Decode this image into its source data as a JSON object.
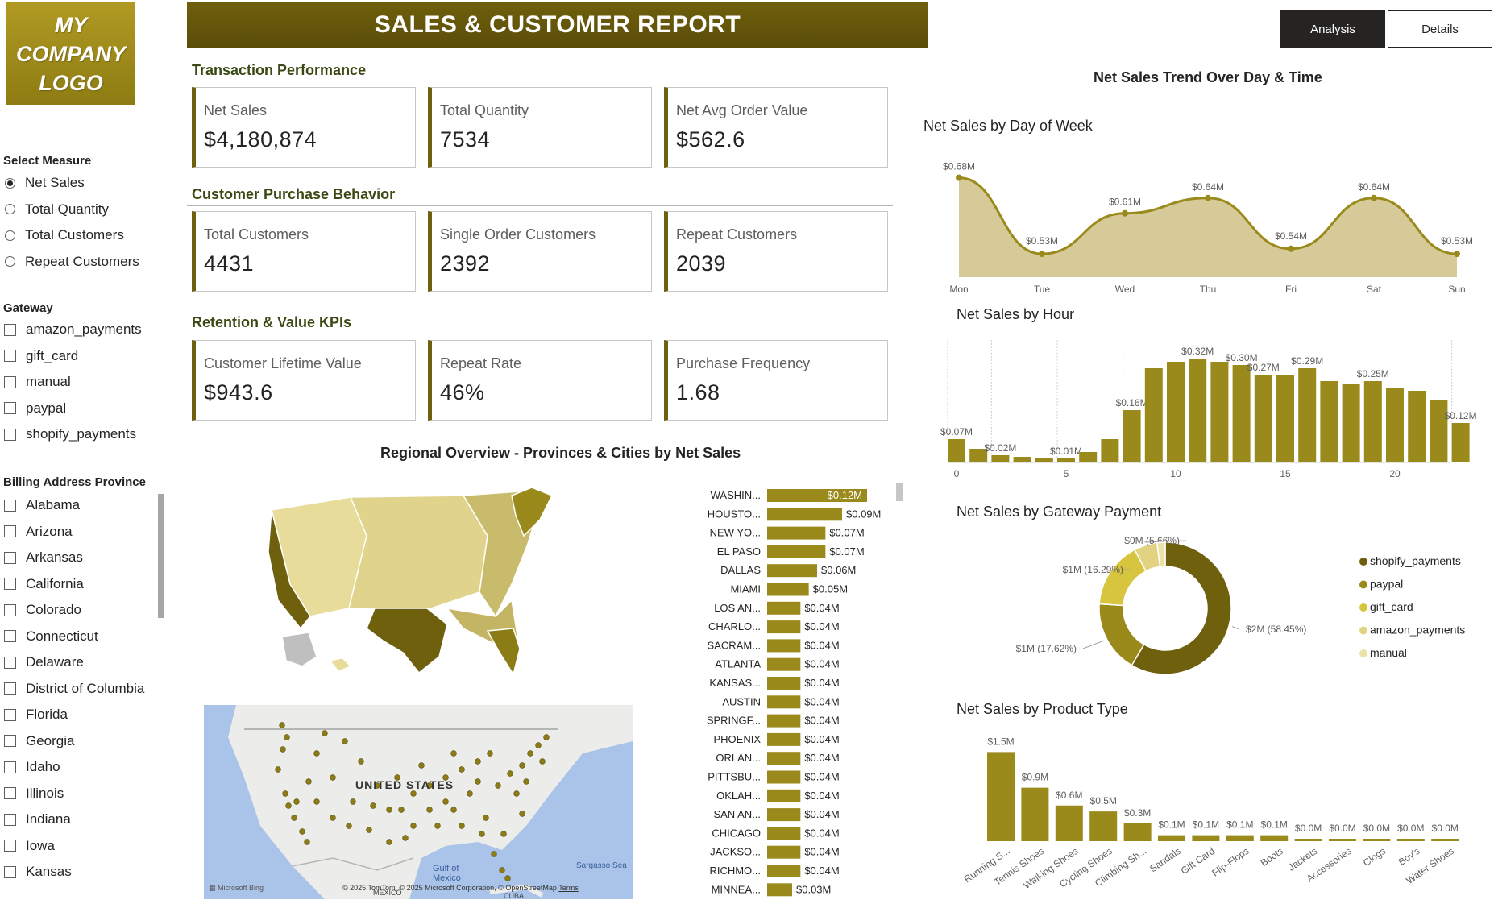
{
  "logo": {
    "line1": "MY",
    "line2": "COMPANY",
    "line3": "LOGO"
  },
  "header": {
    "title": "SALES & CUSTOMER REPORT"
  },
  "tabs": {
    "analysis": "Analysis",
    "details": "Details"
  },
  "sidebar": {
    "measure_title": "Select Measure",
    "measures": [
      "Net Sales",
      "Total Quantity",
      "Total Customers",
      "Repeat Customers"
    ],
    "gateway_title": "Gateway",
    "gateways": [
      "amazon_payments",
      "gift_card",
      "manual",
      "paypal",
      "shopify_payments"
    ],
    "province_title": "Billing Address Province",
    "provinces": [
      "Alabama",
      "Arizona",
      "Arkansas",
      "California",
      "Colorado",
      "Connecticut",
      "Delaware",
      "District of Columbia",
      "Florida",
      "Georgia",
      "Idaho",
      "Illinois",
      "Indiana",
      "Iowa",
      "Kansas"
    ]
  },
  "sections": {
    "transaction": "Transaction Performance",
    "customer": "Customer Purchase Behavior",
    "retention": "Retention & Value KPIs"
  },
  "kpis": {
    "net_sales": {
      "label": "Net Sales",
      "value": "$4,180,874"
    },
    "total_quantity": {
      "label": "Total Quantity",
      "value": "7534"
    },
    "net_aov": {
      "label": "Net Avg Order Value",
      "value": "$562.6"
    },
    "total_customers": {
      "label": "Total Customers",
      "value": "4431"
    },
    "single_customers": {
      "label": "Single Order Customers",
      "value": "2392"
    },
    "repeat_customers": {
      "label": "Repeat Customers",
      "value": "2039"
    },
    "clv": {
      "label": "Customer Lifetime Value",
      "value": "$943.6"
    },
    "repeat_rate": {
      "label": "Repeat Rate",
      "value": "46%"
    },
    "purchase_freq": {
      "label": "Purchase Frequency",
      "value": "1.68"
    }
  },
  "regional": {
    "title": "Regional Overview - Provinces & Cities by Net Sales",
    "map_labels": {
      "country": "UNITED STATES",
      "gulf": "Gulf of Mexico",
      "sargasso": "Sargasso Sea",
      "mexico": "MEXICO",
      "cuba": "CUBA",
      "bing": "Microsoft Bing",
      "copyright": "© 2025 TomTom, © 2025 Microsoft Corporation, © OpenStreetMap",
      "terms": "Terms"
    }
  },
  "trend_title": "Net Sales Trend Over Day & Time",
  "chart_data": [
    {
      "type": "area",
      "title": "Net Sales by Day of Week",
      "categories": [
        "Mon",
        "Tue",
        "Wed",
        "Thu",
        "Fri",
        "Sat",
        "Sun"
      ],
      "values": [
        0.68,
        0.53,
        0.61,
        0.64,
        0.54,
        0.64,
        0.53
      ],
      "labels": [
        "$0.68M",
        "$0.53M",
        "$0.61M",
        "$0.64M",
        "$0.54M",
        "$0.64M",
        "$0.53M"
      ],
      "ylim": [
        0.5,
        0.7
      ]
    },
    {
      "type": "bar",
      "title": "Net Sales by Hour",
      "x": [
        0,
        1,
        2,
        3,
        4,
        5,
        6,
        7,
        8,
        9,
        10,
        11,
        12,
        13,
        14,
        15,
        16,
        17,
        18,
        19,
        20,
        21,
        22,
        23
      ],
      "values": [
        0.07,
        0.04,
        0.02,
        0.015,
        0.01,
        0.01,
        0.03,
        0.07,
        0.16,
        0.29,
        0.31,
        0.32,
        0.31,
        0.3,
        0.27,
        0.27,
        0.29,
        0.25,
        0.24,
        0.25,
        0.23,
        0.22,
        0.19,
        0.12
      ],
      "labels": {
        "0": "$0.07M",
        "2": "$0.02M",
        "5": "$0.01M",
        "8": "$0.16M",
        "11": "$0.32M",
        "13": "$0.30M",
        "14": "$0.27M",
        "16": "$0.29M",
        "19": "$0.25M",
        "23": "$0.12M"
      },
      "xticks": [
        0,
        5,
        10,
        15,
        20
      ],
      "ylim": [
        0,
        0.35
      ]
    },
    {
      "type": "pie",
      "title": "Net Sales by Gateway Payment",
      "slices": [
        {
          "name": "shopify_payments",
          "value": 58.45,
          "label": "$2M (58.45%)",
          "color": "#6e600d"
        },
        {
          "name": "paypal",
          "value": 17.62,
          "label": "$1M (17.62%)",
          "color": "#9a8a1c"
        },
        {
          "name": "gift_card",
          "value": 16.29,
          "label": "$1M (16.29%)",
          "color": "#d7c43f"
        },
        {
          "name": "amazon_payments",
          "value": 5.66,
          "label": "$0M (5.66%)",
          "color": "#e2d383"
        },
        {
          "name": "manual",
          "value": 1.98,
          "label": "",
          "color": "#ece2a8"
        }
      ]
    },
    {
      "type": "bar",
      "title": "Net Sales by Product Type",
      "categories": [
        "Running S...",
        "Tennis Shoes",
        "Walking Shoes",
        "Cycling Shoes",
        "Climbing Sh...",
        "Sandals",
        "Gift Card",
        "Flip-Flops",
        "Boots",
        "Jackets",
        "Accessories",
        "Clogs",
        "Boy's",
        "Water Shoes"
      ],
      "values": [
        1.5,
        0.9,
        0.6,
        0.5,
        0.3,
        0.1,
        0.1,
        0.1,
        0.1,
        0.04,
        0.03,
        0.02,
        0.02,
        0.02
      ],
      "labels": [
        "$1.5M",
        "$0.9M",
        "$0.6M",
        "$0.5M",
        "$0.3M",
        "$0.1M",
        "$0.1M",
        "$0.1M",
        "$0.1M",
        "$0.0M",
        "$0.0M",
        "$0.0M",
        "$0.0M",
        "$0.0M"
      ],
      "ylim": [
        0,
        1.6
      ]
    },
    {
      "type": "bar",
      "title": "",
      "orientation": "horizontal",
      "categories": [
        "WASHIN...",
        "HOUSTO...",
        "NEW YO...",
        "EL PASO",
        "DALLAS",
        "MIAMI",
        "LOS AN...",
        "CHARLO...",
        "SACRAM...",
        "ATLANTA",
        "KANSAS...",
        "AUSTIN",
        "SPRINGF...",
        "PHOENIX",
        "ORLAN...",
        "PITTSBU...",
        "OKLAH...",
        "SAN AN...",
        "CHICAGO",
        "JACKSO...",
        "RICHMO...",
        "MINNEA..."
      ],
      "values": [
        0.12,
        0.09,
        0.07,
        0.07,
        0.06,
        0.05,
        0.04,
        0.04,
        0.04,
        0.04,
        0.04,
        0.04,
        0.04,
        0.04,
        0.04,
        0.04,
        0.04,
        0.04,
        0.04,
        0.04,
        0.04,
        0.03
      ],
      "labels": [
        "$0.12M",
        "$0.09M",
        "$0.07M",
        "$0.07M",
        "$0.06M",
        "$0.05M",
        "$0.04M",
        "$0.04M",
        "$0.04M",
        "$0.04M",
        "$0.04M",
        "$0.04M",
        "$0.04M",
        "$0.04M",
        "$0.04M",
        "$0.04M",
        "$0.04M",
        "$0.04M",
        "$0.04M",
        "$0.04M",
        "$0.04M",
        "$0.03M"
      ]
    }
  ]
}
